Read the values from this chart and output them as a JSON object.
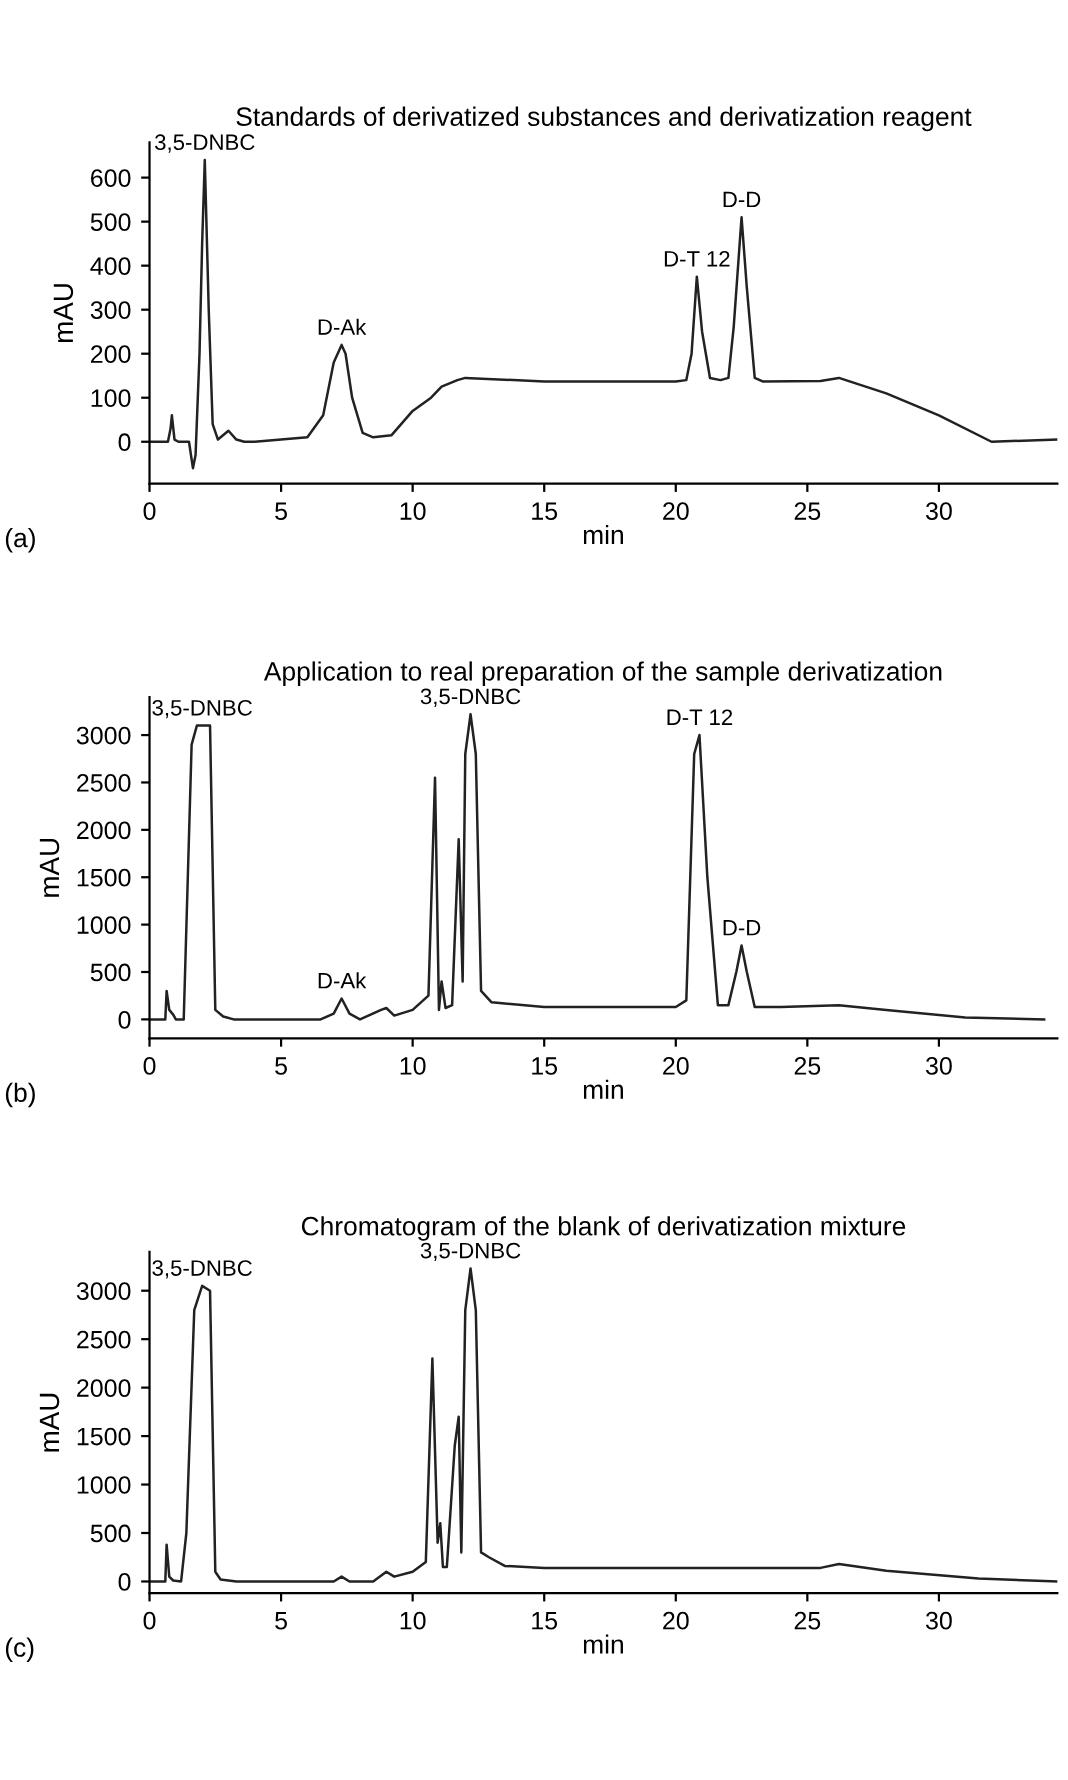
{
  "chart_data": [
    {
      "type": "line",
      "title": "Standards of derivatized substances and derivatization reagent",
      "xlabel": "min",
      "ylabel": "mAU",
      "series": [
        {
          "color": "#222222",
          "x": [
            0,
            0.7,
            0.8,
            0.85,
            0.95,
            1.1,
            1.5,
            1.65,
            1.75,
            1.9,
            2.0,
            2.1,
            2.25,
            2.4,
            2.6,
            3.0,
            3.3,
            3.6,
            4,
            6,
            6.6,
            7.0,
            7.3,
            7.45,
            7.7,
            8.1,
            8.5,
            9.2,
            10,
            10.7,
            11.1,
            11.7,
            12,
            15,
            20,
            20.4,
            20.6,
            20.8,
            21.0,
            21.3,
            21.7,
            22.0,
            22.2,
            22.5,
            22.7,
            23.0,
            23.3,
            25.5,
            26.2,
            28,
            30,
            32,
            34.5
          ],
          "values": [
            0,
            0,
            30,
            60,
            5,
            0,
            0,
            -60,
            -30,
            200,
            450,
            640,
            300,
            40,
            5,
            25,
            5,
            0,
            0,
            10,
            60,
            180,
            220,
            200,
            100,
            20,
            10,
            15,
            70,
            100,
            125,
            140,
            145,
            137,
            137,
            140,
            200,
            375,
            250,
            145,
            140,
            145,
            260,
            510,
            350,
            145,
            137,
            138,
            145,
            110,
            60,
            0,
            5
          ]
        }
      ],
      "xlim": [
        0,
        34.5
      ],
      "xticks": [
        0,
        5,
        10,
        15,
        20,
        25,
        30
      ],
      "ylim": [
        -95,
        680
      ],
      "yticks": [
        0,
        100,
        200,
        300,
        400,
        500,
        600
      ],
      "grid": false,
      "marker": "none",
      "line_style": "solid",
      "annotations": [
        {
          "text": "3,5-DNBC",
          "x": 2.1,
          "y": 640
        },
        {
          "text": "D-Ak",
          "x": 7.3,
          "y": 220
        },
        {
          "text": "D-T 12",
          "x": 20.8,
          "y": 375
        },
        {
          "text": "D-D",
          "x": 22.5,
          "y": 510
        },
        "(a)"
      ]
    },
    {
      "type": "line",
      "title": "Application to real preparation of the sample derivatization",
      "xlabel": "min",
      "ylabel": "mAU",
      "series": [
        {
          "color": "#222222",
          "x": [
            0,
            0.6,
            0.65,
            0.75,
            0.9,
            1.0,
            1.3,
            1.6,
            1.8,
            2.3,
            2.5,
            2.8,
            3.2,
            6.5,
            7.0,
            7.3,
            7.6,
            8.0,
            8.8,
            9.0,
            9.3,
            10.0,
            10.6,
            10.85,
            11.0,
            11.1,
            11.25,
            11.5,
            11.75,
            11.9,
            12.0,
            12.2,
            12.4,
            12.6,
            13,
            15,
            20,
            20.4,
            20.7,
            20.9,
            21.2,
            21.6,
            22.0,
            22.3,
            22.5,
            22.7,
            23.0,
            24,
            26.2,
            28,
            31,
            34
          ],
          "values": [
            0,
            0,
            300,
            100,
            50,
            0,
            0,
            2900,
            3100,
            3100,
            100,
            30,
            0,
            0,
            60,
            220,
            60,
            0,
            100,
            120,
            40,
            100,
            250,
            2550,
            100,
            400,
            120,
            150,
            1900,
            400,
            2800,
            3220,
            2800,
            300,
            180,
            130,
            130,
            200,
            2800,
            3000,
            1500,
            150,
            150,
            500,
            780,
            500,
            130,
            130,
            150,
            100,
            20,
            0
          ]
        }
      ],
      "xlim": [
        0,
        34.5
      ],
      "xticks": [
        0,
        5,
        10,
        15,
        20,
        25,
        30
      ],
      "ylim": [
        -200,
        3400
      ],
      "yticks": [
        0,
        500,
        1000,
        1500,
        2000,
        2500,
        3000
      ],
      "grid": false,
      "marker": "none",
      "line_style": "solid",
      "annotations": [
        {
          "text": "3,5-DNBC",
          "x": 2.0,
          "y": 3100
        },
        {
          "text": "D-Ak",
          "x": 7.3,
          "y": 220
        },
        {
          "text": "3,5-DNBC",
          "x": 12.2,
          "y": 3220
        },
        {
          "text": "D-T 12",
          "x": 20.9,
          "y": 3000
        },
        {
          "text": "D-D",
          "x": 22.5,
          "y": 780
        },
        "(b)"
      ]
    },
    {
      "type": "line",
      "title": "Chromatogram of the blank of derivatization mixture",
      "xlabel": "min",
      "ylabel": "mAU",
      "series": [
        {
          "color": "#222222",
          "x": [
            0,
            0.6,
            0.65,
            0.75,
            0.9,
            1.2,
            1.4,
            1.7,
            2.0,
            2.3,
            2.5,
            2.7,
            3.0,
            3.3,
            7.0,
            7.3,
            7.6,
            8.5,
            9.0,
            9.3,
            10.0,
            10.5,
            10.75,
            10.95,
            11.05,
            11.15,
            11.3,
            11.6,
            11.75,
            11.85,
            12.0,
            12.2,
            12.4,
            12.6,
            12.9,
            13.5,
            15,
            20,
            25.5,
            26.2,
            28,
            31.5,
            34.5
          ],
          "values": [
            0,
            0,
            380,
            50,
            10,
            0,
            500,
            2800,
            3050,
            3000,
            100,
            20,
            10,
            0,
            0,
            50,
            0,
            0,
            100,
            50,
            100,
            200,
            2300,
            400,
            600,
            150,
            150,
            1400,
            1700,
            300,
            2800,
            3230,
            2800,
            300,
            250,
            160,
            140,
            140,
            140,
            180,
            110,
            30,
            0
          ]
        }
      ],
      "xlim": [
        0,
        34.5
      ],
      "xticks": [
        0,
        5,
        10,
        15,
        20,
        25,
        30
      ],
      "ylim": [
        -120,
        3400
      ],
      "yticks": [
        0,
        500,
        1000,
        1500,
        2000,
        2500,
        3000
      ],
      "grid": false,
      "marker": "none",
      "line_style": "solid",
      "annotations": [
        {
          "text": "3,5-DNBC",
          "x": 2.0,
          "y": 3050
        },
        {
          "text": "3,5-DNBC",
          "x": 12.2,
          "y": 3230
        },
        "(c)"
      ]
    }
  ]
}
